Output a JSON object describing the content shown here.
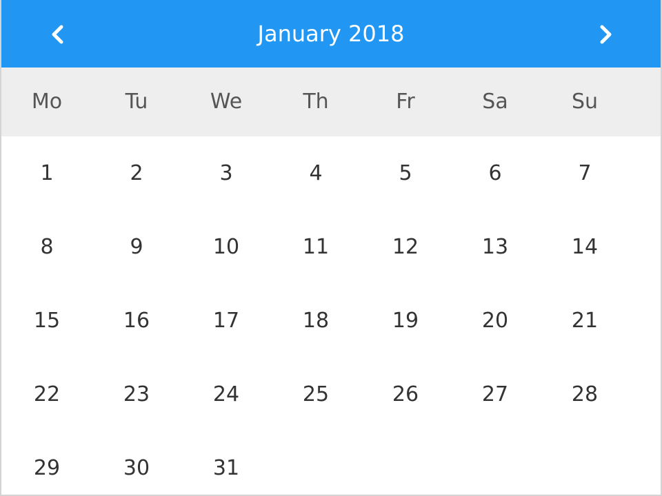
{
  "header": {
    "title": "January 2018",
    "prev_icon": "chevron-left-icon",
    "next_icon": "chevron-right-icon",
    "color": "#2196f3"
  },
  "weekdays": [
    "Mo",
    "Tu",
    "We",
    "Th",
    "Fr",
    "Sa",
    "Su"
  ],
  "days": [
    "1",
    "2",
    "3",
    "4",
    "5",
    "6",
    "7",
    "8",
    "9",
    "10",
    "11",
    "12",
    "13",
    "14",
    "15",
    "16",
    "17",
    "18",
    "19",
    "20",
    "21",
    "22",
    "23",
    "24",
    "25",
    "26",
    "27",
    "28",
    "29",
    "30",
    "31"
  ],
  "colors": {
    "weekday_bg": "#eeeeee",
    "text": "#333333"
  }
}
